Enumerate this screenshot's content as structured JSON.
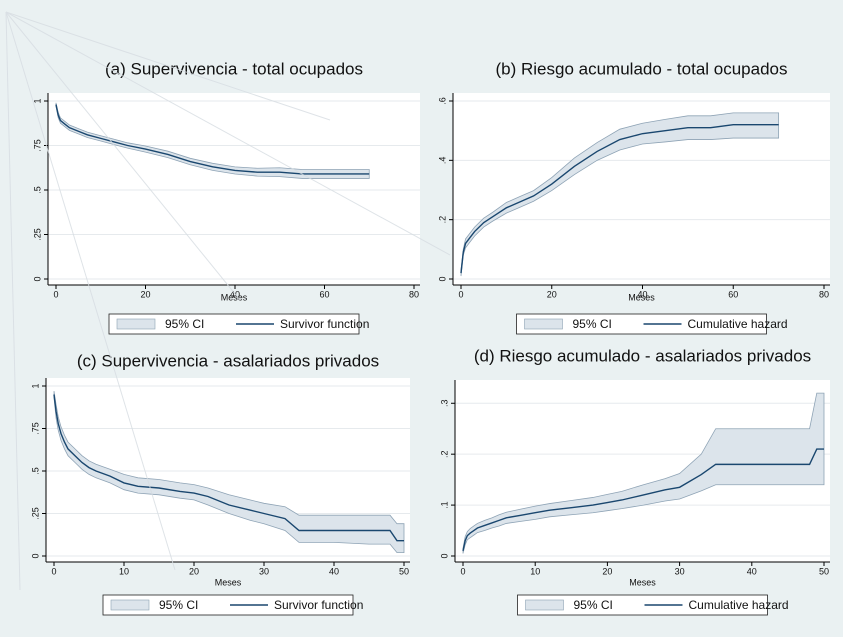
{
  "chart_data": [
    {
      "type": "line",
      "title": "(a) Supervivencia - total ocupados",
      "xlabel": "Meses",
      "x": [
        0,
        0.5,
        1,
        2,
        3,
        5,
        7,
        10,
        13,
        16,
        20,
        25,
        30,
        35,
        40,
        45,
        50,
        55,
        60,
        65,
        70
      ],
      "series": [
        {
          "name": "95% CI",
          "color": "#dce4eb",
          "lower": [
            0.97,
            0.905,
            0.875,
            0.855,
            0.835,
            0.815,
            0.795,
            0.775,
            0.755,
            0.735,
            0.713,
            0.682,
            0.642,
            0.61,
            0.59,
            0.578,
            0.575,
            0.565,
            0.565,
            0.565,
            0.565
          ],
          "upper": [
            0.99,
            0.935,
            0.905,
            0.885,
            0.865,
            0.845,
            0.825,
            0.805,
            0.785,
            0.765,
            0.747,
            0.718,
            0.678,
            0.65,
            0.63,
            0.622,
            0.625,
            0.615,
            0.615,
            0.615,
            0.615
          ]
        },
        {
          "name": "Survivor function",
          "color": "#1a476f",
          "values": [
            0.98,
            0.92,
            0.89,
            0.87,
            0.85,
            0.83,
            0.81,
            0.79,
            0.77,
            0.75,
            0.73,
            0.7,
            0.66,
            0.63,
            0.61,
            0.6,
            0.6,
            0.59,
            0.59,
            0.59,
            0.59
          ]
        }
      ],
      "xlim": [
        0,
        80
      ],
      "xticks": [
        0,
        20,
        40,
        60,
        80
      ],
      "ylim": [
        0,
        1
      ],
      "yticks": [
        0,
        {
          "value": 0.25,
          "label": ".25"
        },
        {
          "value": 0.5,
          "label": ".5"
        },
        {
          "value": 0.75,
          "label": ".75"
        },
        1
      ],
      "grid": true,
      "legend": "bottom"
    },
    {
      "type": "line",
      "title": "(b) Riesgo acumulado - total ocupados",
      "xlabel": "Meses",
      "x": [
        0,
        0.5,
        1,
        2,
        3,
        5,
        7,
        10,
        13,
        16,
        20,
        25,
        30,
        35,
        40,
        45,
        50,
        55,
        60,
        65,
        70
      ],
      "series": [
        {
          "name": "95% CI",
          "color": "#dce4eb",
          "lower": [
            0.01,
            0.08,
            0.105,
            0.125,
            0.145,
            0.175,
            0.195,
            0.222,
            0.242,
            0.262,
            0.298,
            0.352,
            0.4,
            0.435,
            0.455,
            0.462,
            0.47,
            0.47,
            0.475,
            0.475,
            0.475
          ],
          "upper": [
            0.03,
            0.1,
            0.135,
            0.155,
            0.175,
            0.205,
            0.225,
            0.258,
            0.278,
            0.298,
            0.342,
            0.408,
            0.46,
            0.505,
            0.525,
            0.538,
            0.55,
            0.55,
            0.56,
            0.56,
            0.56
          ]
        },
        {
          "name": "Cumulative hazard",
          "color": "#1a476f",
          "values": [
            0.02,
            0.09,
            0.12,
            0.14,
            0.16,
            0.19,
            0.21,
            0.24,
            0.26,
            0.28,
            0.32,
            0.38,
            0.43,
            0.47,
            0.49,
            0.5,
            0.51,
            0.51,
            0.52,
            0.52,
            0.52
          ]
        }
      ],
      "xlim": [
        0,
        80
      ],
      "xticks": [
        0,
        20,
        40,
        60,
        80
      ],
      "ylim": [
        0,
        0.6
      ],
      "yticks": [
        0,
        {
          "value": 0.2,
          "label": ".2"
        },
        {
          "value": 0.4,
          "label": ".4"
        },
        {
          "value": 0.6,
          "label": ".6"
        }
      ],
      "grid": true,
      "legend": "bottom"
    },
    {
      "type": "line",
      "title": "(c) Supervivencia - asalariados privados",
      "xlabel": "Meses",
      "x": [
        0,
        0.3,
        0.6,
        1,
        1.5,
        2,
        3,
        4,
        5,
        6,
        8,
        10,
        12,
        15,
        18,
        20,
        22,
        25,
        28,
        30,
        33,
        35,
        40,
        45,
        48,
        49,
        50
      ],
      "series": [
        {
          "name": "95% CI",
          "color": "#dce4eb",
          "lower": [
            0.93,
            0.81,
            0.74,
            0.68,
            0.63,
            0.59,
            0.55,
            0.51,
            0.48,
            0.46,
            0.43,
            0.39,
            0.37,
            0.36,
            0.34,
            0.33,
            0.3,
            0.25,
            0.21,
            0.19,
            0.15,
            0.08,
            0.08,
            0.07,
            0.07,
            0.02,
            0.02
          ],
          "upper": [
            0.97,
            0.89,
            0.82,
            0.76,
            0.71,
            0.67,
            0.63,
            0.59,
            0.56,
            0.54,
            0.51,
            0.48,
            0.46,
            0.45,
            0.43,
            0.42,
            0.4,
            0.36,
            0.33,
            0.31,
            0.29,
            0.24,
            0.24,
            0.24,
            0.24,
            0.19,
            0.19
          ]
        },
        {
          "name": "Survivor function",
          "color": "#1a476f",
          "values": [
            0.95,
            0.85,
            0.78,
            0.72,
            0.67,
            0.63,
            0.59,
            0.55,
            0.52,
            0.5,
            0.47,
            0.43,
            0.41,
            0.4,
            0.38,
            0.37,
            0.35,
            0.3,
            0.27,
            0.25,
            0.22,
            0.15,
            0.15,
            0.15,
            0.15,
            0.09,
            0.09
          ]
        }
      ],
      "xlim": [
        0,
        50
      ],
      "xticks": [
        0,
        10,
        20,
        30,
        40,
        50
      ],
      "ylim": [
        0,
        1
      ],
      "yticks": [
        0,
        {
          "value": 0.25,
          "label": ".25"
        },
        {
          "value": 0.5,
          "label": ".5"
        },
        {
          "value": 0.75,
          "label": ".75"
        },
        1
      ],
      "grid": true,
      "legend": "bottom"
    },
    {
      "type": "line",
      "title": "(d) Riesgo acumulado - asalariados privados",
      "xlabel": "Meses",
      "x": [
        0,
        0.3,
        0.6,
        1,
        1.5,
        2,
        3,
        4,
        5,
        6,
        8,
        10,
        12,
        15,
        18,
        20,
        22,
        25,
        28,
        30,
        33,
        35,
        40,
        45,
        48,
        49,
        50
      ],
      "series": [
        {
          "name": "95% CI",
          "color": "#dce4eb",
          "lower": [
            0.005,
            0.022,
            0.032,
            0.036,
            0.041,
            0.046,
            0.05,
            0.055,
            0.059,
            0.064,
            0.068,
            0.072,
            0.077,
            0.081,
            0.085,
            0.089,
            0.093,
            0.1,
            0.108,
            0.112,
            0.128,
            0.14,
            0.14,
            0.14,
            0.14,
            0.14,
            0.14
          ],
          "upper": [
            0.015,
            0.038,
            0.048,
            0.054,
            0.059,
            0.064,
            0.07,
            0.075,
            0.081,
            0.086,
            0.092,
            0.098,
            0.103,
            0.109,
            0.115,
            0.121,
            0.127,
            0.14,
            0.152,
            0.162,
            0.2,
            0.25,
            0.25,
            0.25,
            0.25,
            0.32,
            0.32
          ]
        },
        {
          "name": "Cumulative hazard",
          "color": "#1a476f",
          "values": [
            0.01,
            0.03,
            0.04,
            0.045,
            0.05,
            0.055,
            0.06,
            0.065,
            0.07,
            0.075,
            0.08,
            0.085,
            0.09,
            0.095,
            0.1,
            0.105,
            0.11,
            0.12,
            0.13,
            0.135,
            0.16,
            0.18,
            0.18,
            0.18,
            0.18,
            0.21,
            0.21
          ]
        }
      ],
      "xlim": [
        0,
        50
      ],
      "xticks": [
        0,
        10,
        20,
        30,
        40,
        50
      ],
      "ylim": [
        0,
        0.33
      ],
      "yticks": [
        0,
        {
          "value": 0.1,
          "label": ".1"
        },
        {
          "value": 0.2,
          "label": ".2"
        },
        {
          "value": 0.3,
          "label": ".3"
        }
      ],
      "grid": true,
      "legend": "bottom"
    }
  ]
}
